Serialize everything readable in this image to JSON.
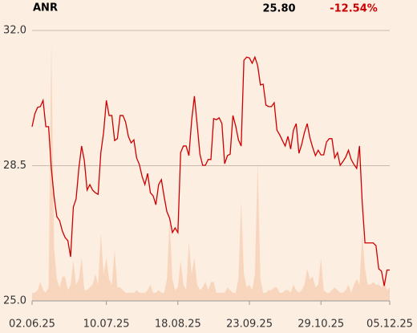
{
  "chart_data": {
    "type": "line",
    "title": "ANR",
    "last_price": {
      "value": 25.8,
      "label": "25.80"
    },
    "change": {
      "value": -12.54,
      "label": "-12.54%"
    },
    "color": "#cc0000",
    "volume_color": "#f8d6be",
    "values": [
      29.51,
      29.84,
      30.01,
      30.03,
      30.19,
      29.51,
      29.51,
      28.43,
      27.7,
      27.18,
      27.08,
      26.81,
      26.64,
      26.56,
      26.14,
      27.43,
      27.64,
      28.43,
      29.01,
      28.63,
      27.87,
      28.01,
      27.87,
      27.8,
      27.76,
      28.84,
      29.36,
      30.19,
      29.8,
      29.8,
      29.15,
      29.2,
      29.8,
      29.8,
      29.63,
      29.26,
      29.09,
      29.17,
      28.7,
      28.53,
      28.22,
      28.01,
      28.3,
      27.8,
      27.72,
      27.49,
      28.01,
      28.14,
      27.7,
      27.31,
      27.14,
      26.77,
      26.89,
      26.77,
      28.84,
      29.01,
      29.01,
      28.76,
      29.67,
      30.3,
      29.57,
      28.8,
      28.51,
      28.51,
      28.66,
      28.66,
      29.72,
      29.69,
      29.74,
      29.59,
      28.55,
      28.76,
      28.8,
      29.8,
      29.53,
      29.17,
      29.01,
      31.23,
      31.31,
      31.29,
      31.15,
      31.31,
      31.09,
      30.59,
      30.61,
      30.07,
      30.03,
      30.03,
      30.13,
      29.42,
      29.3,
      29.15,
      29.01,
      29.26,
      28.93,
      29.42,
      29.59,
      28.82,
      29.05,
      29.36,
      29.59,
      29.22,
      28.97,
      28.76,
      28.9,
      28.78,
      28.78,
      29.11,
      29.2,
      29.2,
      28.7,
      28.84,
      28.51,
      28.61,
      28.72,
      28.9,
      28.66,
      28.53,
      28.43,
      29.01,
      27.55,
      26.5,
      26.5,
      26.5,
      26.5,
      26.43,
      25.83,
      25.77,
      25.39,
      25.8,
      25.8
    ],
    "volume": [
      3,
      3,
      4,
      7,
      4,
      3,
      5,
      96,
      20,
      8,
      5,
      9,
      9,
      4,
      6,
      15,
      6,
      8,
      16,
      4,
      4,
      5,
      6,
      10,
      6,
      25,
      10,
      16,
      8,
      6,
      19,
      5,
      5,
      4,
      3,
      3,
      3,
      3,
      4,
      3,
      3,
      3,
      4,
      6,
      3,
      3,
      4,
      3,
      3,
      8,
      30,
      8,
      4,
      5,
      15,
      6,
      4,
      22,
      10,
      16,
      6,
      4,
      5,
      7,
      4,
      7,
      7,
      3,
      3,
      3,
      3,
      5,
      4,
      3,
      3,
      8,
      37,
      10,
      5,
      6,
      4,
      10,
      52,
      8,
      3,
      3,
      4,
      4,
      5,
      5,
      3,
      3,
      4,
      4,
      3,
      6,
      4,
      3,
      4,
      6,
      12,
      8,
      9,
      5,
      6,
      16,
      4,
      3,
      3,
      4,
      5,
      4,
      3,
      3,
      4,
      6,
      3,
      6,
      8,
      6,
      25,
      12,
      6,
      6,
      7,
      6,
      6,
      5,
      7,
      4,
      5
    ],
    "volume_ylim": [
      0,
      100
    ],
    "xlim": [
      0,
      130
    ],
    "xticks": [
      {
        "value": 0,
        "label": "02.06.25"
      },
      {
        "value": 27,
        "label": "10.07.25"
      },
      {
        "value": 53,
        "label": "18.08.25"
      },
      {
        "value": 79,
        "label": "23.09.25"
      },
      {
        "value": 105,
        "label": "29.10.25"
      },
      {
        "value": 130,
        "label": "05.12.25"
      }
    ],
    "ylim": [
      25,
      32
    ],
    "yticks": [
      {
        "value": 25,
        "label": "25.0"
      },
      28.5,
      {
        "value": 32,
        "label": "32.0"
      }
    ],
    "grid": true
  }
}
